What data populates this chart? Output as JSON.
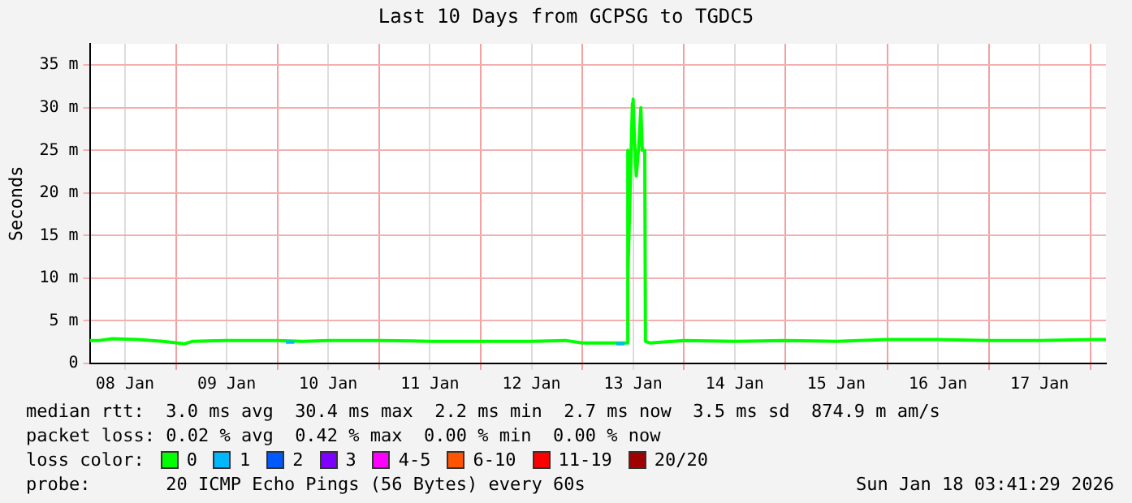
{
  "chart_data": {
    "type": "line",
    "title": "Last 10 Days from GCPSG to TGDC5",
    "ylabel": "Seconds",
    "legend_title": "loss color:",
    "legend": "bottom",
    "grid": true,
    "marker": "none",
    "line_style": "solid",
    "xlim": [
      "2026-01-08T03:41",
      "2026-01-18T03:41"
    ],
    "xticks": [
      {
        "value": "2026-01-08T12:00",
        "label": "08 Jan"
      },
      {
        "value": "2026-01-09T00:00",
        "label": null
      },
      {
        "value": "2026-01-09T12:00",
        "label": "09 Jan"
      },
      {
        "value": "2026-01-10T00:00",
        "label": null
      },
      {
        "value": "2026-01-10T12:00",
        "label": "10 Jan"
      },
      {
        "value": "2026-01-11T00:00",
        "label": null
      },
      {
        "value": "2026-01-11T12:00",
        "label": "11 Jan"
      },
      {
        "value": "2026-01-12T00:00",
        "label": null
      },
      {
        "value": "2026-01-12T12:00",
        "label": "12 Jan"
      },
      {
        "value": "2026-01-13T00:00",
        "label": null
      },
      {
        "value": "2026-01-13T12:00",
        "label": "13 Jan"
      },
      {
        "value": "2026-01-14T00:00",
        "label": null
      },
      {
        "value": "2026-01-14T12:00",
        "label": "14 Jan"
      },
      {
        "value": "2026-01-15T00:00",
        "label": null
      },
      {
        "value": "2026-01-15T12:00",
        "label": "15 Jan"
      },
      {
        "value": "2026-01-16T00:00",
        "label": null
      },
      {
        "value": "2026-01-16T12:00",
        "label": "16 Jan"
      },
      {
        "value": "2026-01-17T00:00",
        "label": null
      },
      {
        "value": "2026-01-17T12:00",
        "label": "17 Jan"
      },
      {
        "value": "2026-01-18T00:00",
        "label": null
      }
    ],
    "ylim": [
      0,
      37.5
    ],
    "yticks": [
      0,
      {
        "value": 5,
        "label": "5 m"
      },
      {
        "value": 10,
        "label": "10 m"
      },
      {
        "value": 15,
        "label": "15 m"
      },
      {
        "value": 20,
        "label": "20 m"
      },
      {
        "value": 25,
        "label": "25 m"
      },
      {
        "value": 30,
        "label": "30 m"
      },
      {
        "value": 35,
        "label": "35 m"
      }
    ],
    "series": [
      {
        "name": "0",
        "color": "#00ff00",
        "x": [
          "2026-01-08T03:41",
          "2026-01-08T06:00",
          "2026-01-08T09:00",
          "2026-01-08T15:00",
          "2026-01-08T21:00",
          "2026-01-09T02:00",
          "2026-01-09T04:00",
          "2026-01-09T12:00",
          "2026-01-10T00:00",
          "2026-01-10T06:00",
          "2026-01-10T12:00",
          "2026-01-11T00:00",
          "2026-01-11T12:00",
          "2026-01-12T00:00",
          "2026-01-12T12:00",
          "2026-01-12T20:00",
          "2026-01-13T00:00",
          "2026-01-13T06:00",
          "2026-01-13T10:35",
          "2026-01-13T10:40",
          "2026-01-13T10:50",
          "2026-01-13T11:50",
          "2026-01-13T12:00",
          "2026-01-13T12:20",
          "2026-01-13T12:45",
          "2026-01-13T13:20",
          "2026-01-13T13:50",
          "2026-01-13T14:10",
          "2026-01-13T14:45",
          "2026-01-13T14:55",
          "2026-01-13T16:00",
          "2026-01-14T00:00",
          "2026-01-14T12:00",
          "2026-01-15T00:00",
          "2026-01-15T12:00",
          "2026-01-16T00:00",
          "2026-01-16T12:00",
          "2026-01-17T00:00",
          "2026-01-17T12:00",
          "2026-01-18T00:00",
          "2026-01-18T03:41"
        ],
        "values": [
          2.7,
          2.7,
          2.9,
          2.8,
          2.6,
          2.3,
          2.6,
          2.7,
          2.7,
          2.6,
          2.7,
          2.7,
          2.6,
          2.6,
          2.6,
          2.7,
          2.4,
          2.4,
          2.4,
          25,
          10,
          30.5,
          31,
          26,
          22,
          25.5,
          30,
          25,
          25,
          2.6,
          2.4,
          2.7,
          2.6,
          2.7,
          2.6,
          2.8,
          2.8,
          2.7,
          2.7,
          2.8,
          2.8
        ]
      },
      {
        "name": "1",
        "color": "#00b8ff",
        "x": [
          "2026-01-10T02:00",
          "2026-01-10T04:00",
          "2026-01-11T00:00",
          "2026-01-13T08:00",
          "2026-01-13T10:00"
        ],
        "values": [
          2.5,
          2.5,
          null,
          2.3,
          2.3
        ]
      },
      {
        "name": "2",
        "color": "#0059ff"
      },
      {
        "name": "3",
        "color": "#7e00ff"
      },
      {
        "name": "4-5",
        "color": "#ff00ff"
      },
      {
        "name": "6-10",
        "color": "#ff5500"
      },
      {
        "name": "11-19",
        "color": "#ff0000"
      },
      {
        "name": "20/20",
        "color": "#a10000"
      }
    ],
    "annotations": [
      "median rtt:  3.0 ms avg  30.4 ms max  2.2 ms min  2.7 ms now  3.5 ms sd  874.9 m am/s",
      "packet loss: 0.02 % avg  0.42 % max  0.00 % min  0.00 % now",
      "probe:       20 ICMP Echo Pings (56 Bytes) every 60s",
      "Sun Jan 18 03:41:29 2026"
    ]
  }
}
